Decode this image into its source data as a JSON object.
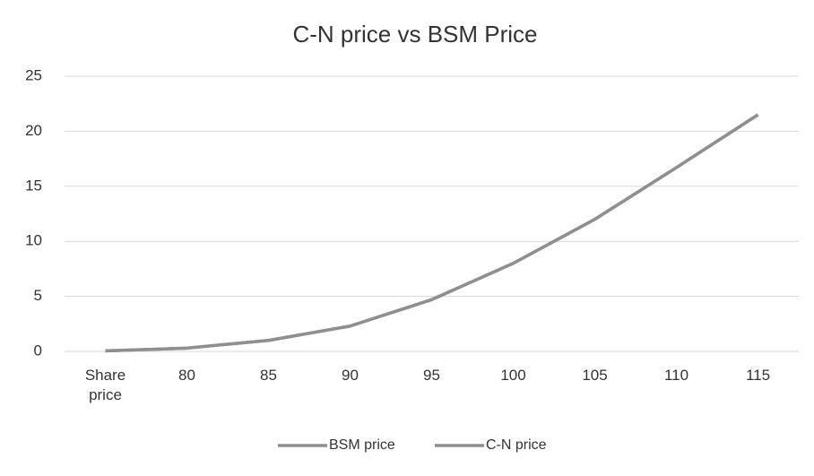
{
  "chart_data": {
    "type": "line",
    "title": "C-N price  vs BSM Price",
    "categories": [
      "Share price",
      "80",
      "85",
      "90",
      "95",
      "100",
      "105",
      "110",
      "115"
    ],
    "series": [
      {
        "name": "BSM price",
        "color": "#8f8f8f",
        "values": [
          0.05,
          0.3,
          1.0,
          2.3,
          4.7,
          8.0,
          12.0,
          16.7,
          21.5
        ]
      },
      {
        "name": "C-N price",
        "color": "#8f8f8f",
        "values": [
          0.05,
          0.3,
          1.0,
          2.3,
          4.7,
          8.0,
          12.0,
          16.7,
          21.5
        ]
      }
    ],
    "ylim": [
      0,
      25
    ],
    "yticks": [
      0,
      5,
      10,
      15,
      20,
      25
    ],
    "grid": true,
    "legend": "bottom"
  }
}
